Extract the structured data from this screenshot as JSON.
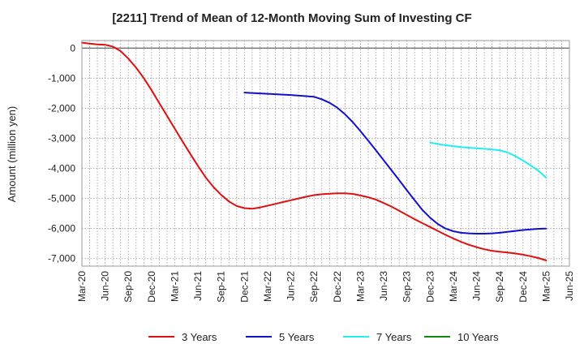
{
  "chart_data": {
    "type": "line",
    "title": "[2211]  Trend of Mean of 12-Month Moving Sum of Investing CF",
    "xlabel": "",
    "ylabel": "Amount (million yen)",
    "ylim": [
      -7250,
      250
    ],
    "yticks": [
      0,
      -1000,
      -2000,
      -3000,
      -4000,
      -5000,
      -6000,
      -7000
    ],
    "ytick_labels": [
      "0",
      "-1,000",
      "-2,000",
      "-3,000",
      "-4,000",
      "-5,000",
      "-6,000",
      "-7,000"
    ],
    "x_tick_labels": [
      "Mar-20",
      "Jun-20",
      "Sep-20",
      "Dec-20",
      "Mar-21",
      "Jun-21",
      "Sep-21",
      "Dec-21",
      "Mar-22",
      "Jun-22",
      "Sep-22",
      "Dec-22",
      "Mar-23",
      "Jun-23",
      "Sep-23",
      "Dec-23",
      "Mar-24",
      "Jun-24",
      "Sep-24",
      "Dec-24",
      "Mar-25",
      "Jun-25"
    ],
    "grid": true,
    "legend_position": "bottom",
    "series": [
      {
        "name": "3 Years",
        "color": "#dd1111",
        "points": [
          [
            0,
            180
          ],
          [
            1,
            150
          ],
          [
            2,
            120
          ],
          [
            3,
            110
          ],
          [
            4,
            50
          ],
          [
            5,
            -100
          ],
          [
            6,
            -350
          ],
          [
            7,
            -650
          ],
          [
            8,
            -1000
          ],
          [
            9,
            -1400
          ],
          [
            10,
            -1830
          ],
          [
            11,
            -2250
          ],
          [
            12,
            -2680
          ],
          [
            13,
            -3100
          ],
          [
            14,
            -3520
          ],
          [
            15,
            -3920
          ],
          [
            16,
            -4300
          ],
          [
            17,
            -4620
          ],
          [
            18,
            -4880
          ],
          [
            19,
            -5100
          ],
          [
            20,
            -5250
          ],
          [
            21,
            -5320
          ],
          [
            22,
            -5340
          ],
          [
            23,
            -5300
          ],
          [
            24,
            -5240
          ],
          [
            25,
            -5180
          ],
          [
            26,
            -5120
          ],
          [
            27,
            -5060
          ],
          [
            28,
            -5000
          ],
          [
            29,
            -4940
          ],
          [
            30,
            -4890
          ],
          [
            31,
            -4860
          ],
          [
            32,
            -4840
          ],
          [
            33,
            -4830
          ],
          [
            34,
            -4830
          ],
          [
            35,
            -4850
          ],
          [
            36,
            -4900
          ],
          [
            37,
            -4960
          ],
          [
            38,
            -5040
          ],
          [
            39,
            -5150
          ],
          [
            40,
            -5270
          ],
          [
            41,
            -5410
          ],
          [
            42,
            -5550
          ],
          [
            43,
            -5690
          ],
          [
            44,
            -5820
          ],
          [
            45,
            -5950
          ],
          [
            46,
            -6080
          ],
          [
            47,
            -6210
          ],
          [
            48,
            -6330
          ],
          [
            49,
            -6440
          ],
          [
            50,
            -6540
          ],
          [
            51,
            -6620
          ],
          [
            52,
            -6690
          ],
          [
            53,
            -6740
          ],
          [
            54,
            -6770
          ],
          [
            55,
            -6800
          ],
          [
            56,
            -6830
          ],
          [
            57,
            -6870
          ],
          [
            58,
            -6920
          ],
          [
            59,
            -6980
          ],
          [
            60,
            -7060
          ]
        ]
      },
      {
        "name": "5 Years",
        "color": "#1111cc",
        "points": [
          [
            21,
            -1480
          ],
          [
            24,
            -1520
          ],
          [
            27,
            -1560
          ],
          [
            30,
            -1620
          ],
          [
            31,
            -1700
          ],
          [
            32,
            -1820
          ],
          [
            33,
            -1980
          ],
          [
            34,
            -2200
          ],
          [
            35,
            -2460
          ],
          [
            36,
            -2760
          ],
          [
            37,
            -3080
          ],
          [
            38,
            -3400
          ],
          [
            39,
            -3730
          ],
          [
            40,
            -4060
          ],
          [
            41,
            -4390
          ],
          [
            42,
            -4730
          ],
          [
            43,
            -5060
          ],
          [
            44,
            -5380
          ],
          [
            45,
            -5640
          ],
          [
            46,
            -5850
          ],
          [
            47,
            -6000
          ],
          [
            48,
            -6090
          ],
          [
            49,
            -6140
          ],
          [
            50,
            -6160
          ],
          [
            51,
            -6170
          ],
          [
            52,
            -6170
          ],
          [
            53,
            -6160
          ],
          [
            54,
            -6140
          ],
          [
            55,
            -6110
          ],
          [
            56,
            -6080
          ],
          [
            57,
            -6050
          ],
          [
            58,
            -6030
          ],
          [
            59,
            -6010
          ],
          [
            60,
            -6000
          ]
        ]
      },
      {
        "name": "7 Years",
        "color": "#22eeee",
        "points": [
          [
            45,
            -3140
          ],
          [
            46,
            -3190
          ],
          [
            47,
            -3230
          ],
          [
            48,
            -3260
          ],
          [
            49,
            -3290
          ],
          [
            50,
            -3310
          ],
          [
            51,
            -3330
          ],
          [
            52,
            -3350
          ],
          [
            53,
            -3370
          ],
          [
            54,
            -3400
          ],
          [
            55,
            -3470
          ],
          [
            56,
            -3590
          ],
          [
            57,
            -3740
          ],
          [
            58,
            -3900
          ],
          [
            59,
            -4080
          ],
          [
            60,
            -4310
          ]
        ]
      },
      {
        "name": "10 Years",
        "color": "#118811",
        "points": []
      }
    ]
  }
}
